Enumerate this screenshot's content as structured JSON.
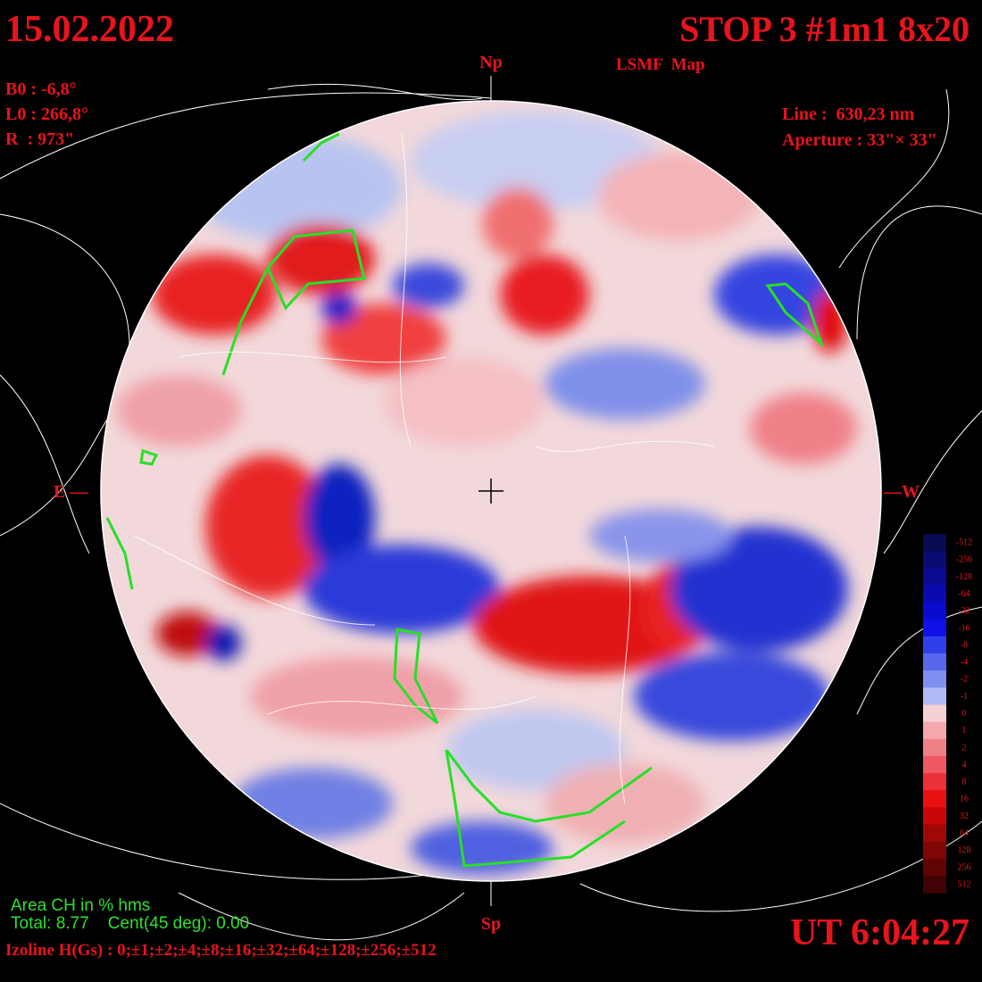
{
  "header": {
    "date": "15.02.2022",
    "title": "STOP 3 #1m1 8x20",
    "subtitle": "LSMF  Map"
  },
  "params_left": [
    "B0 : -6,8°",
    "L0 : 266,8°",
    "R  : 973\""
  ],
  "params_right": [
    "Line :  630,23 nm",
    "Aperture : 33\"× 33\""
  ],
  "directions": {
    "north": "Np",
    "south": "Sp",
    "east": "E —",
    "west": "—W"
  },
  "colorbar": {
    "labels": [
      "-512",
      "-256",
      "-128",
      "-64",
      "-32",
      "-16",
      "-8",
      "-4",
      "-2",
      "-1",
      "0",
      "1",
      "2",
      "4",
      "8",
      "16",
      "32",
      "64",
      "128",
      "256",
      "512"
    ]
  },
  "coronal_holes": {
    "heading": "Area CH in % hms",
    "totals": "Total: 8.77    Cent(45 deg): 0.00"
  },
  "isolines": "Izoline H(Gs) : 0;±1;±2;±4;±8;±16;±32;±64;±128;±256;±512",
  "time": "UT 6:04:27"
}
